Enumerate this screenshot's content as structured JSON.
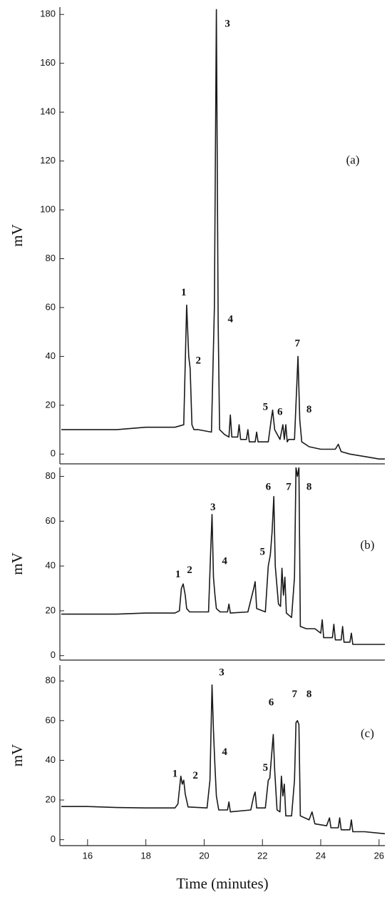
{
  "chart_data": [
    {
      "type": "line",
      "y_label": "mV",
      "panel_label": {
        "text": "(a)",
        "x": 25.1,
        "y": 120
      },
      "xlim": [
        15.05,
        26.2
      ],
      "ylim": [
        -4,
        183
      ],
      "yticks": [
        0,
        20,
        40,
        60,
        80,
        100,
        120,
        140,
        160,
        180
      ],
      "x": [
        15.1,
        16,
        17,
        18,
        19,
        19.3,
        19.4,
        19.47,
        19.52,
        19.58,
        19.65,
        19.8,
        20.25,
        20.35,
        20.42,
        20.48,
        20.53,
        20.7,
        20.85,
        20.9,
        20.95,
        21.15,
        21.2,
        21.25,
        21.45,
        21.5,
        21.55,
        21.75,
        21.8,
        21.85,
        22.2,
        22.3,
        22.35,
        22.42,
        22.6,
        22.7,
        22.75,
        22.8,
        22.85,
        22.9,
        23.1,
        23.22,
        23.28,
        23.35,
        23.6,
        24,
        24.5,
        24.6,
        24.7,
        25,
        25.5,
        26,
        26.2
      ],
      "values": [
        10,
        10,
        10,
        11,
        11,
        12,
        61,
        40,
        35,
        12,
        10,
        10,
        9,
        60,
        182,
        54,
        10,
        8,
        7,
        16,
        7,
        7,
        12,
        6,
        6,
        10,
        5,
        5,
        9,
        5,
        5,
        14,
        18,
        10,
        6,
        12,
        6,
        12,
        5,
        6,
        6,
        40,
        14,
        5,
        3,
        2,
        2,
        4,
        1,
        0,
        -1,
        -2,
        -2
      ],
      "annotations": [
        {
          "text": "1",
          "x": 19.3,
          "y": 66
        },
        {
          "text": "2",
          "x": 19.8,
          "y": 38
        },
        {
          "text": "3",
          "x": 20.8,
          "y": 176
        },
        {
          "text": "4",
          "x": 20.9,
          "y": 55
        },
        {
          "text": "5",
          "x": 22.1,
          "y": 19
        },
        {
          "text": "6",
          "x": 22.6,
          "y": 17
        },
        {
          "text": "7",
          "x": 23.2,
          "y": 45
        },
        {
          "text": "8",
          "x": 23.6,
          "y": 18
        }
      ]
    },
    {
      "type": "line",
      "y_label": "mV",
      "panel_label": {
        "text": "(b)",
        "x": 25.6,
        "y": 49
      },
      "xlim": [
        15.05,
        26.2
      ],
      "ylim": [
        -2,
        84
      ],
      "yticks": [
        0,
        20,
        40,
        60,
        80
      ],
      "x": [
        15.1,
        16,
        17,
        18,
        19,
        19.15,
        19.22,
        19.28,
        19.35,
        19.4,
        19.5,
        20.15,
        20.22,
        20.27,
        20.32,
        20.37,
        20.42,
        20.55,
        20.8,
        20.85,
        20.9,
        21.5,
        21.7,
        21.75,
        21.8,
        22.1,
        22.2,
        22.27,
        22.33,
        22.39,
        22.44,
        22.55,
        22.62,
        22.67,
        22.72,
        22.77,
        22.82,
        23.0,
        23.1,
        23.15,
        23.2,
        23.25,
        23.3,
        23.5,
        23.8,
        24,
        24.05,
        24.1,
        24.4,
        24.45,
        24.5,
        24.7,
        24.75,
        24.8,
        25,
        25.05,
        25.1,
        25.5,
        26.2
      ],
      "values": [
        18.5,
        18.5,
        18.5,
        19,
        19,
        20,
        30,
        32,
        27,
        21,
        19.5,
        19.5,
        45,
        63,
        35,
        27,
        21,
        19.5,
        19.5,
        23,
        19,
        19.5,
        30,
        33,
        21,
        19.5,
        40,
        45,
        55,
        71,
        40,
        23,
        22,
        39,
        27,
        35,
        19,
        17,
        35,
        84,
        80,
        84,
        13,
        12,
        12,
        10,
        16,
        8,
        8,
        14,
        7,
        7,
        13,
        6,
        6,
        10,
        5,
        5,
        5
      ],
      "annotations": [
        {
          "text": "1",
          "x": 19.1,
          "y": 36
        },
        {
          "text": "2",
          "x": 19.5,
          "y": 38
        },
        {
          "text": "3",
          "x": 20.3,
          "y": 66
        },
        {
          "text": "4",
          "x": 20.7,
          "y": 42
        },
        {
          "text": "5",
          "x": 22.0,
          "y": 46
        },
        {
          "text": "6",
          "x": 22.2,
          "y": 75
        },
        {
          "text": "7",
          "x": 22.9,
          "y": 75
        },
        {
          "text": "8",
          "x": 23.6,
          "y": 75
        }
      ]
    },
    {
      "type": "line",
      "y_label": "mV",
      "x_label": "Time (minutes)",
      "panel_label": {
        "text": "(c)",
        "x": 25.6,
        "y": 53
      },
      "xlim": [
        15.05,
        26.2
      ],
      "ylim": [
        -3,
        88
      ],
      "yticks": [
        0,
        20,
        40,
        60,
        80
      ],
      "xticks": [
        16,
        18,
        20,
        22,
        24,
        26
      ],
      "x": [
        15.1,
        16,
        17,
        18,
        19,
        19.1,
        19.2,
        19.25,
        19.3,
        19.35,
        19.45,
        20.1,
        20.2,
        20.27,
        20.32,
        20.37,
        20.42,
        20.5,
        20.8,
        20.85,
        20.9,
        21.6,
        21.7,
        21.75,
        21.8,
        22.1,
        22.2,
        22.25,
        22.3,
        22.37,
        22.42,
        22.5,
        22.6,
        22.65,
        22.7,
        22.75,
        22.8,
        23.0,
        23.1,
        23.15,
        23.2,
        23.25,
        23.3,
        23.6,
        23.7,
        23.8,
        24.2,
        24.3,
        24.35,
        24.6,
        24.65,
        24.7,
        25,
        25.05,
        25.1,
        25.5,
        26.2
      ],
      "values": [
        16.7,
        16.7,
        16.2,
        16,
        16,
        18,
        32,
        28,
        30,
        23,
        16.5,
        16,
        30,
        78,
        55,
        37,
        22,
        15,
        15,
        19,
        14,
        15,
        22,
        24,
        16,
        16,
        30,
        31,
        40,
        53,
        35,
        15,
        14,
        32,
        22,
        28,
        12,
        12,
        30,
        59,
        60,
        58,
        12,
        10,
        14,
        8,
        7,
        11,
        6,
        6,
        11,
        5,
        5,
        10,
        4,
        4,
        3
      ],
      "annotations": [
        {
          "text": "1",
          "x": 19.0,
          "y": 33
        },
        {
          "text": "2",
          "x": 19.7,
          "y": 32
        },
        {
          "text": "3",
          "x": 20.6,
          "y": 84
        },
        {
          "text": "4",
          "x": 20.7,
          "y": 44
        },
        {
          "text": "5",
          "x": 22.1,
          "y": 36
        },
        {
          "text": "6",
          "x": 22.3,
          "y": 69
        },
        {
          "text": "7",
          "x": 23.1,
          "y": 73
        },
        {
          "text": "8",
          "x": 23.6,
          "y": 73
        }
      ]
    }
  ]
}
